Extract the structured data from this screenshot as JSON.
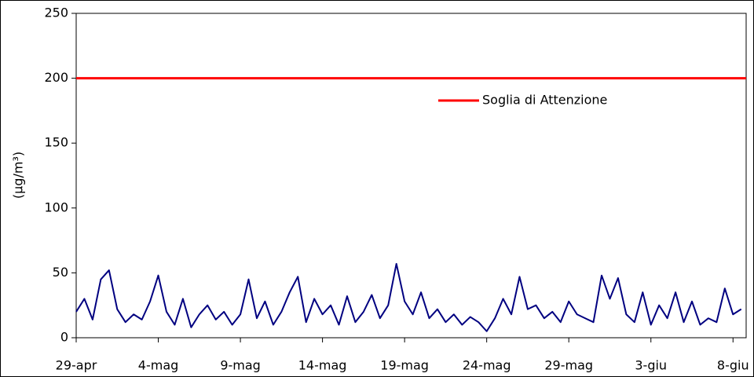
{
  "chart_data": {
    "type": "line",
    "y_label": "(µg/m³)",
    "ylim": [
      0,
      250
    ],
    "yticks": [
      0,
      50,
      100,
      150,
      200,
      250
    ],
    "xlim": [
      0,
      40.8
    ],
    "xticks": [
      {
        "value": 0,
        "label": "29-apr"
      },
      {
        "value": 5,
        "label": "4-mag"
      },
      {
        "value": 10,
        "label": "9-mag"
      },
      {
        "value": 15,
        "label": "14-mag"
      },
      {
        "value": 20,
        "label": "19-mag"
      },
      {
        "value": 25,
        "label": "24-mag"
      },
      {
        "value": 30,
        "label": "29-mag"
      },
      {
        "value": 35,
        "label": "3-giu"
      },
      {
        "value": 40,
        "label": "8-giu"
      }
    ],
    "series": [
      {
        "color": "#000080",
        "x": [
          0,
          0.5,
          1,
          1.5,
          2,
          2.5,
          3,
          3.5,
          4,
          4.5,
          5,
          5.5,
          6,
          6.5,
          7,
          7.5,
          8,
          8.5,
          9,
          9.5,
          10,
          10.5,
          11,
          11.5,
          12,
          12.5,
          13,
          13.5,
          14,
          14.5,
          15,
          15.5,
          16,
          16.5,
          17,
          17.5,
          18,
          18.5,
          19,
          19.5,
          20,
          20.5,
          21,
          21.5,
          22,
          22.5,
          23,
          23.5,
          24,
          24.5,
          25,
          25.5,
          26,
          26.5,
          27,
          27.5,
          28,
          28.5,
          29,
          29.5,
          30,
          30.5,
          31,
          31.5,
          32,
          32.5,
          33,
          33.5,
          34,
          34.5,
          35,
          35.5,
          36,
          36.5,
          37,
          37.5,
          38,
          38.5,
          39,
          39.5,
          40,
          40.5
        ],
        "values": [
          20,
          30,
          14,
          45,
          52,
          22,
          12,
          18,
          14,
          28,
          48,
          20,
          10,
          30,
          8,
          18,
          25,
          14,
          20,
          10,
          18,
          45,
          15,
          28,
          10,
          20,
          35,
          47,
          12,
          30,
          18,
          25,
          10,
          32,
          12,
          20,
          33,
          15,
          25,
          57,
          28,
          18,
          35,
          15,
          22,
          12,
          18,
          10,
          16,
          12,
          5,
          15,
          30,
          18,
          47,
          22,
          25,
          15,
          20,
          12,
          28,
          18,
          15,
          12,
          48,
          30,
          46,
          18,
          12,
          35,
          10,
          25,
          15,
          35,
          12,
          28,
          10,
          15,
          12,
          38,
          18,
          22
        ]
      },
      {
        "name": "Soglia di Attenzione",
        "color": "#ff0000",
        "x": [
          0,
          40.8
        ],
        "values": [
          200,
          200
        ]
      }
    ]
  }
}
